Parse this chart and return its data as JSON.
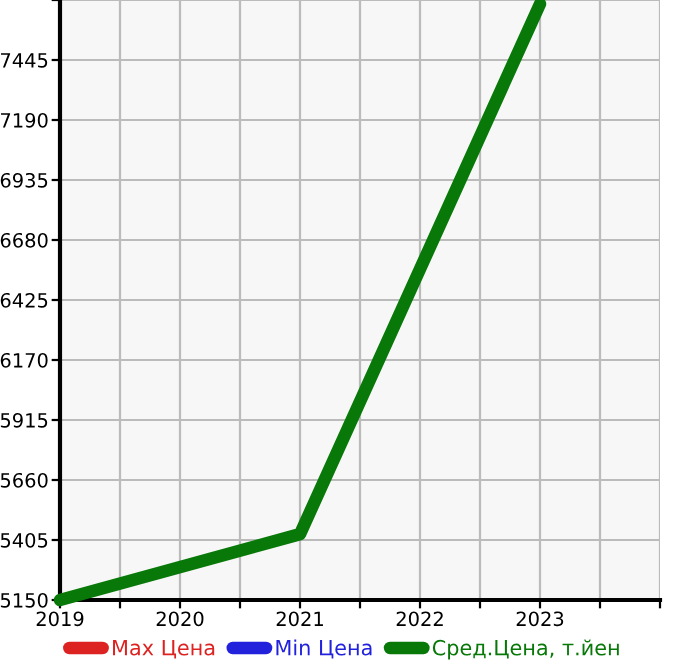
{
  "chart_data": {
    "type": "line",
    "x": [
      2019,
      2021,
      2023
    ],
    "series": [
      {
        "name": "Max Цена",
        "color": "#dd2222",
        "values": [
          null,
          null,
          null
        ]
      },
      {
        "name": "Min Цена",
        "color": "#2222dd",
        "values": [
          null,
          null,
          null
        ]
      },
      {
        "name": "Сред.Цена, т.йен",
        "color": "#087808",
        "values": [
          5150,
          5430,
          7683
        ]
      }
    ],
    "xlim": [
      2019,
      2024
    ],
    "xticks": [
      2019,
      {
        "value": 2019.5,
        "label": null
      },
      2020,
      {
        "value": 2020.5,
        "label": null
      },
      2021,
      {
        "value": 2021.5,
        "label": null
      },
      2022,
      {
        "value": 2022.5,
        "label": null
      },
      2023,
      {
        "value": 2023.5,
        "label": null
      },
      {
        "value": 2024,
        "label": null
      }
    ],
    "ylim": [
      5150,
      7700
    ],
    "yticks": [
      5150,
      5405,
      5660,
      5915,
      6170,
      6425,
      6680,
      6935,
      7190,
      7445,
      {
        "value": 7700,
        "label": null
      }
    ],
    "grid": true,
    "legend": "bottom",
    "marker": "none",
    "line_style": "solid"
  }
}
